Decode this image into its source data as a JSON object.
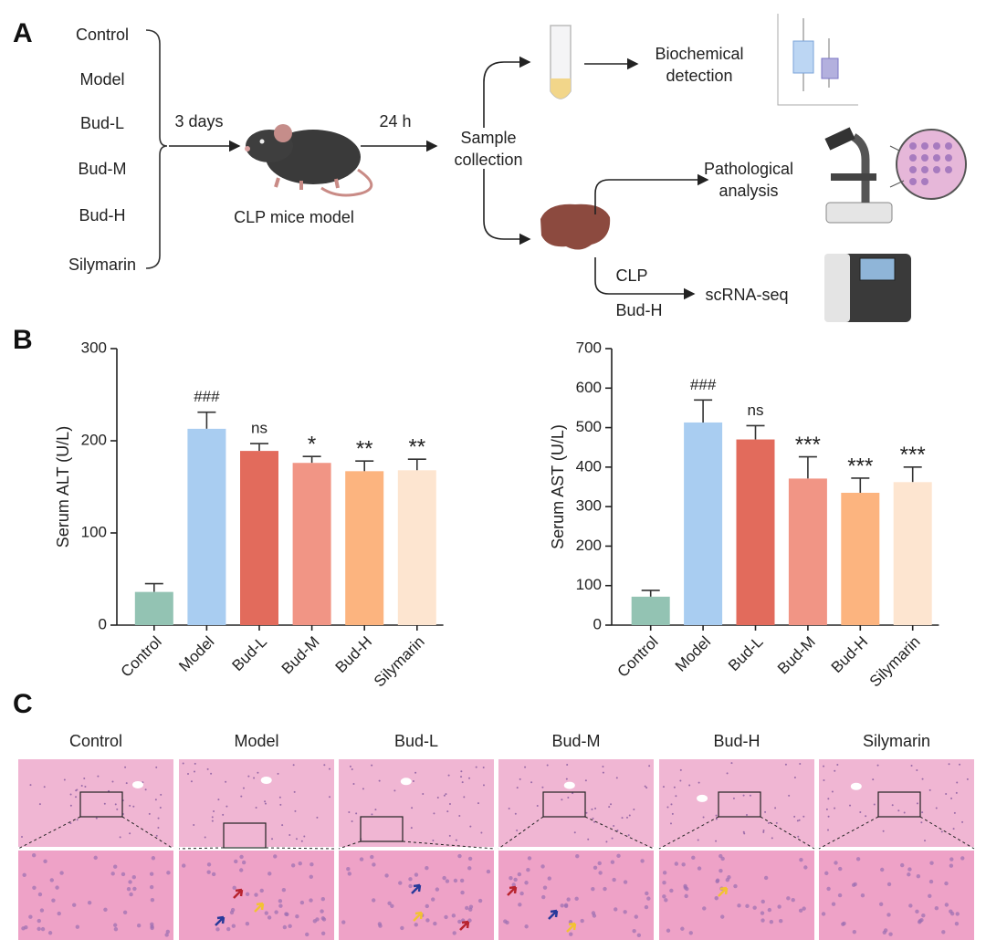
{
  "panel_labels": [
    "A",
    "B",
    "C"
  ],
  "workflow": {
    "groups": [
      "Control",
      "Model",
      "Bud-L",
      "Bud-M",
      "Bud-H",
      "Silymarin"
    ],
    "step1": "3 days",
    "model": "CLP mice model",
    "step2": "24 h",
    "sample": "Sample collection",
    "biochem": "Biochemical detection",
    "patho": "Pathological analysis",
    "seq_groups": [
      "CLP",
      "Bud-H"
    ],
    "seq": "scRNA-seq"
  },
  "chart_data": [
    {
      "type": "bar",
      "ylabel": "Serum ALT (U/L)",
      "categories": [
        "Control",
        "Model",
        "Bud-L",
        "Bud-M",
        "Bud-H",
        "Silymarin"
      ],
      "values": [
        36,
        213,
        189,
        176,
        167,
        168
      ],
      "errors": [
        9,
        18,
        8,
        7,
        11,
        12
      ],
      "annotations": [
        null,
        "###",
        "ns",
        "*",
        "**",
        "**"
      ],
      "colors": [
        "#93c3b3",
        "#a9cdf1",
        "#e26b5c",
        "#f19585",
        "#fcb47f",
        "#fde5d0"
      ],
      "ylim": [
        0,
        300
      ],
      "yticks": [
        0,
        100,
        200,
        300
      ]
    },
    {
      "type": "bar",
      "ylabel": "Serum AST (U/L)",
      "categories": [
        "Control",
        "Model",
        "Bud-L",
        "Bud-M",
        "Bud-H",
        "Silymarin"
      ],
      "values": [
        72,
        513,
        470,
        371,
        335,
        362
      ],
      "errors": [
        16,
        57,
        35,
        55,
        37,
        38
      ],
      "annotations": [
        null,
        "###",
        "ns",
        "***",
        "***",
        "***"
      ],
      "colors": [
        "#93c3b3",
        "#a9cdf1",
        "#e26b5c",
        "#f19585",
        "#fcb47f",
        "#fde5d0"
      ],
      "ylim": [
        0,
        700
      ],
      "yticks": [
        0,
        100,
        200,
        300,
        400,
        500,
        600,
        700
      ]
    }
  ],
  "histology": {
    "columns": [
      "Control",
      "Model",
      "Bud-L",
      "Bud-M",
      "Bud-H",
      "Silymarin"
    ]
  }
}
